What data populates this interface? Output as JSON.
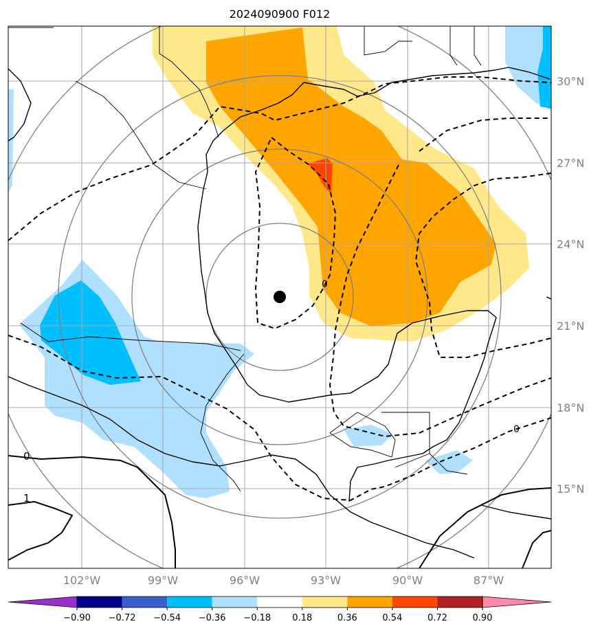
{
  "title": "2024090900 F012",
  "lat_labels": [
    "30°N",
    "27°N",
    "24°N",
    "21°N",
    "18°N",
    "15°N"
  ],
  "lon_labels": [
    "102°W",
    "99°W",
    "96°W",
    "93°W",
    "90°W",
    "87°W"
  ],
  "colorbar": {
    "ticks": [
      "−0.90",
      "−0.72",
      "−0.54",
      "−0.36",
      "−0.18",
      "0.18",
      "0.36",
      "0.54",
      "0.72",
      "0.90"
    ],
    "colors": [
      "#9932cc",
      "#00008b",
      "#3a5fcd",
      "#00bfff",
      "#b0e0ff",
      "#ffffff",
      "#ffe88a",
      "#ffa500",
      "#ff4500",
      "#b22222",
      "#ff88aa"
    ]
  },
  "contour_labels": [
    "0",
    "1",
    "0",
    "0"
  ],
  "colors": {
    "light_yellow": "#ffe88a",
    "orange": "#ffa500",
    "red_orange": "#ff4500",
    "light_blue": "#b0e0ff",
    "deep_sky_blue": "#00bfff"
  },
  "storm_marker": "black-dot"
}
